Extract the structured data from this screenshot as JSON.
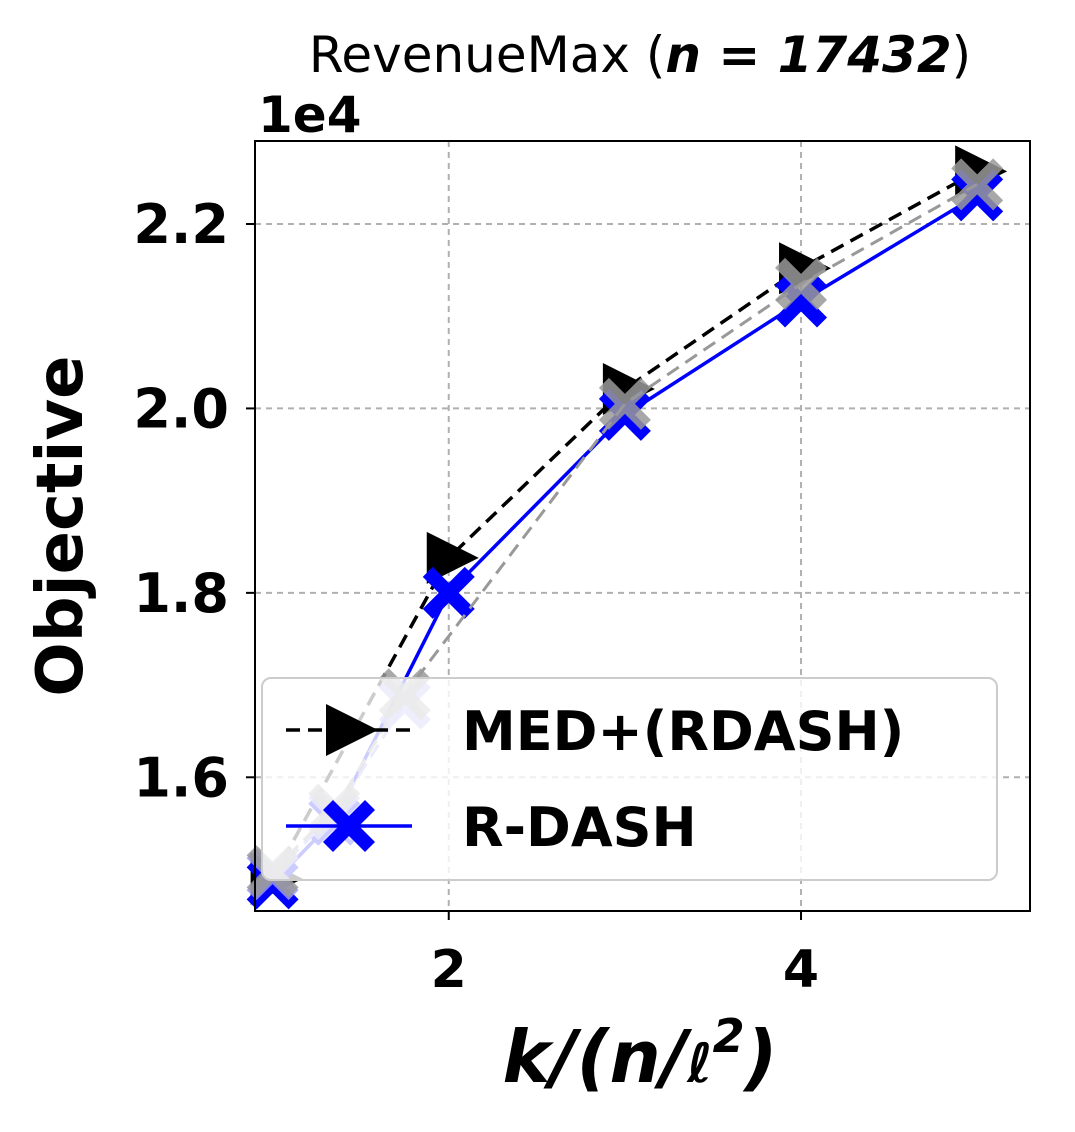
{
  "chart_data": {
    "type": "line",
    "title_prefix": "RevenueMax (",
    "title_math": "n = 17432",
    "title_suffix": ")",
    "offset_text": "1e4",
    "xlabel_main": "k/(n/",
    "xlabel_ell": "ℓ",
    "xlabel_exp": "2",
    "xlabel_close": ")",
    "ylabel": "Objective",
    "xlim": [
      0.9,
      5.3
    ],
    "ylim": [
      14550,
      22900
    ],
    "xticks": [
      2,
      4
    ],
    "xtick_labels": [
      "2",
      "4"
    ],
    "yticks": [
      16000,
      18000,
      20000,
      22000
    ],
    "ytick_labels": [
      "1.6",
      "1.8",
      "2.0",
      "2.2"
    ],
    "grid": true,
    "legend_position": "lower-right",
    "series": [
      {
        "name": "MED+(RDASH)",
        "color": "#000000",
        "linestyle": "dashed",
        "marker": "triangle-right",
        "points": [
          [
            1.0,
            14900
          ],
          [
            2.0,
            18380
          ],
          [
            3.0,
            20210
          ],
          [
            4.0,
            21520
          ],
          [
            5.0,
            22570
          ]
        ]
      },
      {
        "name": "R-DASH",
        "color": "#0000ff",
        "linestyle": "solid",
        "marker": "x",
        "points": [
          [
            1.0,
            14850
          ],
          [
            1.35,
            15540
          ],
          [
            2.0,
            18000
          ],
          [
            3.0,
            19930
          ],
          [
            4.0,
            21160
          ],
          [
            5.0,
            22310
          ]
        ]
      }
    ],
    "overlay_series": [
      {
        "color": "#9a9aee",
        "points": [
          [
            1.0,
            14950
          ],
          [
            1.35,
            15600
          ],
          [
            1.75,
            16800
          ]
        ]
      },
      {
        "color": "#999999",
        "points": [
          [
            1.0,
            14980
          ],
          [
            1.35,
            15650
          ],
          [
            1.75,
            16900
          ],
          [
            3.0,
            20050
          ],
          [
            4.0,
            21350
          ],
          [
            5.0,
            22430
          ]
        ]
      }
    ]
  }
}
